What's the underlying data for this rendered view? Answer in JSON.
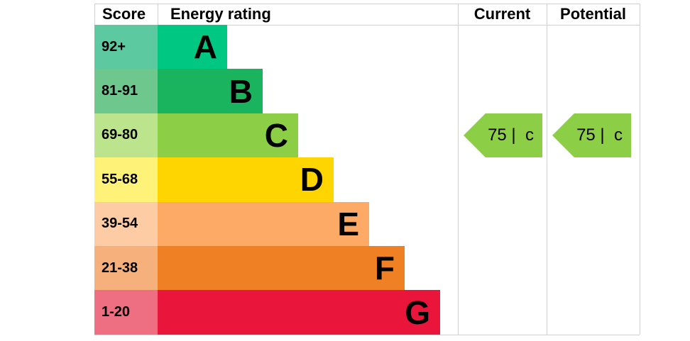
{
  "header": {
    "score": "Score",
    "rating": "Energy rating",
    "current": "Current",
    "potential": "Potential"
  },
  "bands": [
    {
      "score": "92+",
      "letter": "A",
      "color": "#00c781",
      "score_color": "#5cc9a0"
    },
    {
      "score": "81-91",
      "letter": "B",
      "color": "#1ab35e",
      "score_color": "#6ec78c"
    },
    {
      "score": "69-80",
      "letter": "C",
      "color": "#8cce46",
      "score_color": "#bce48c"
    },
    {
      "score": "55-68",
      "letter": "D",
      "color": "#ffd500",
      "score_color": "#fff279"
    },
    {
      "score": "39-54",
      "letter": "E",
      "color": "#fcaa65",
      "score_color": "#fdcca4"
    },
    {
      "score": "21-38",
      "letter": "F",
      "color": "#ef8023",
      "score_color": "#f6b07b"
    },
    {
      "score": "1-20",
      "letter": "G",
      "color": "#e9153b",
      "score_color": "#ef6f82"
    }
  ],
  "current": {
    "text": "75 |  c",
    "band": 2
  },
  "potential": {
    "text": "75 |  c",
    "band": 2
  }
}
